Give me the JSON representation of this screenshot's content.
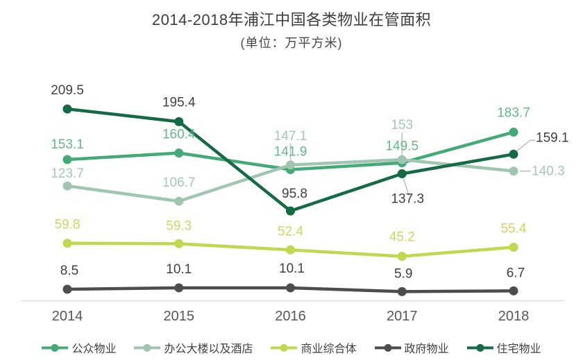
{
  "title": "2014-2018年浦江中国各类物业在管面积",
  "subtitle": "(单位：万平方米)",
  "chart_data": {
    "type": "line",
    "title": "2014-2018年浦江中国各类物业在管面积",
    "subtitle": "(单位：万平方米)",
    "unit": "万平方米",
    "categories": [
      "2014",
      "2015",
      "2016",
      "2017",
      "2018"
    ],
    "series": [
      {
        "name": "公众物业",
        "color": "#43aa76",
        "label_color": "#63b88b",
        "values": [
          153.1,
          160.4,
          141.9,
          149.5,
          183.7
        ]
      },
      {
        "name": "办公大楼以及酒店",
        "color": "#a0c6b2",
        "label_color": "#a4c8b5",
        "values": [
          123.7,
          106.7,
          147.1,
          153,
          140.3
        ]
      },
      {
        "name": "商业综合体",
        "color": "#c1d74d",
        "label_color": "#c8da5f",
        "values": [
          59.8,
          59.3,
          52.4,
          45.2,
          55.4
        ]
      },
      {
        "name": "政府物业",
        "color": "#4d4d4d",
        "label_color": "#3f3f3f",
        "values": [
          8.5,
          10.1,
          10.1,
          5.9,
          6.7
        ]
      },
      {
        "name": "住宅物业",
        "color": "#136a45",
        "label_color": "#3f3f3f",
        "values": [
          209.5,
          195.4,
          95.8,
          137.3,
          159.1
        ]
      }
    ],
    "ylim": [
      0,
      240
    ],
    "grid": false,
    "axis_line_color": "#dcdcdc",
    "axis_label_color": "#575757",
    "leader_line_color": "#b3b3b3",
    "legend_position": "bottom",
    "label_offsets": [
      [
        [
          0,
          -16
        ],
        [
          0,
          -21
        ],
        [
          0,
          -20
        ],
        [
          0,
          -18
        ],
        [
          0,
          -22
        ]
      ],
      [
        [
          0,
          -12
        ],
        [
          0,
          -21
        ],
        [
          0,
          -36
        ],
        [
          0,
          -44
        ],
        [
          26,
          6,
          "start"
        ]
      ],
      [
        [
          0,
          -21
        ],
        [
          0,
          -20
        ],
        [
          0,
          -21
        ],
        [
          0,
          -22
        ],
        [
          0,
          -21
        ]
      ],
      [
        [
          3,
          -21
        ],
        [
          0,
          -21
        ],
        [
          2,
          -22
        ],
        [
          2,
          -20
        ],
        [
          3,
          -20
        ]
      ],
      [
        [
          0,
          -21
        ],
        [
          0,
          -22
        ],
        [
          6,
          -19
        ],
        [
          8,
          42
        ],
        [
          32,
          -18,
          "start"
        ]
      ]
    ],
    "leaders": [
      {
        "series": 1,
        "point": 2,
        "path": [
          [
            0,
            -7
          ],
          [
            0,
            -31
          ]
        ]
      },
      {
        "series": 1,
        "point": 3,
        "path": [
          [
            0,
            -7
          ],
          [
            0,
            -39
          ]
        ]
      },
      {
        "series": 1,
        "point": 4,
        "path": [
          [
            9,
            0
          ],
          [
            24,
            0
          ]
        ]
      },
      {
        "series": 4,
        "point": 3,
        "path": [
          [
            2,
            7
          ],
          [
            10,
            31
          ]
        ]
      },
      {
        "series": 4,
        "point": 4,
        "path": [
          [
            5,
            -5
          ],
          [
            24,
            -20
          ],
          [
            31,
            -20
          ]
        ]
      }
    ]
  }
}
